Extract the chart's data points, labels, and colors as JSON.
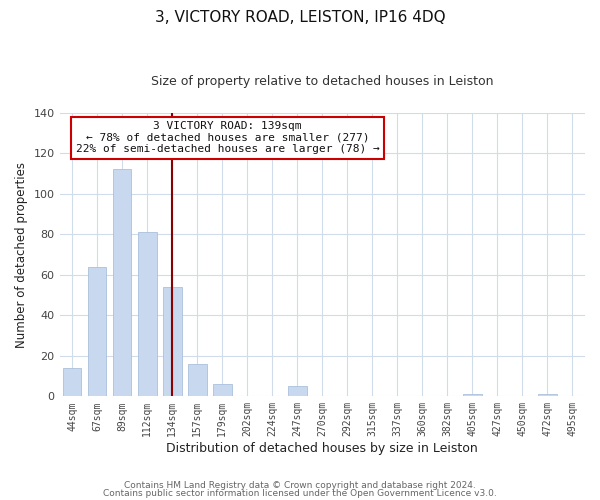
{
  "title": "3, VICTORY ROAD, LEISTON, IP16 4DQ",
  "subtitle": "Size of property relative to detached houses in Leiston",
  "xlabel": "Distribution of detached houses by size in Leiston",
  "ylabel": "Number of detached properties",
  "bar_labels": [
    "44sqm",
    "67sqm",
    "89sqm",
    "112sqm",
    "134sqm",
    "157sqm",
    "179sqm",
    "202sqm",
    "224sqm",
    "247sqm",
    "270sqm",
    "292sqm",
    "315sqm",
    "337sqm",
    "360sqm",
    "382sqm",
    "405sqm",
    "427sqm",
    "450sqm",
    "472sqm",
    "495sqm"
  ],
  "bar_values": [
    14,
    64,
    112,
    81,
    54,
    16,
    6,
    0,
    0,
    5,
    0,
    0,
    0,
    0,
    0,
    0,
    1,
    0,
    0,
    1,
    0
  ],
  "bar_color": "#c8d8ee",
  "vline_index": 4,
  "vline_color": "#8b0000",
  "annotation_text_line1": "3 VICTORY ROAD: 139sqm",
  "annotation_text_line2": "← 78% of detached houses are smaller (277)",
  "annotation_text_line3": "22% of semi-detached houses are larger (78) →",
  "annotation_box_color": "white",
  "annotation_box_edge_color": "#cc0000",
  "ylim": [
    0,
    140
  ],
  "yticks": [
    0,
    20,
    40,
    60,
    80,
    100,
    120,
    140
  ],
  "footer_line1": "Contains HM Land Registry data © Crown copyright and database right 2024.",
  "footer_line2": "Contains public sector information licensed under the Open Government Licence v3.0.",
  "plot_bg_color": "#ffffff",
  "fig_bg_color": "#ffffff",
  "grid_color": "#d0dcea",
  "title_fontsize": 11,
  "subtitle_fontsize": 9,
  "ylabel_fontsize": 8.5,
  "xlabel_fontsize": 9
}
